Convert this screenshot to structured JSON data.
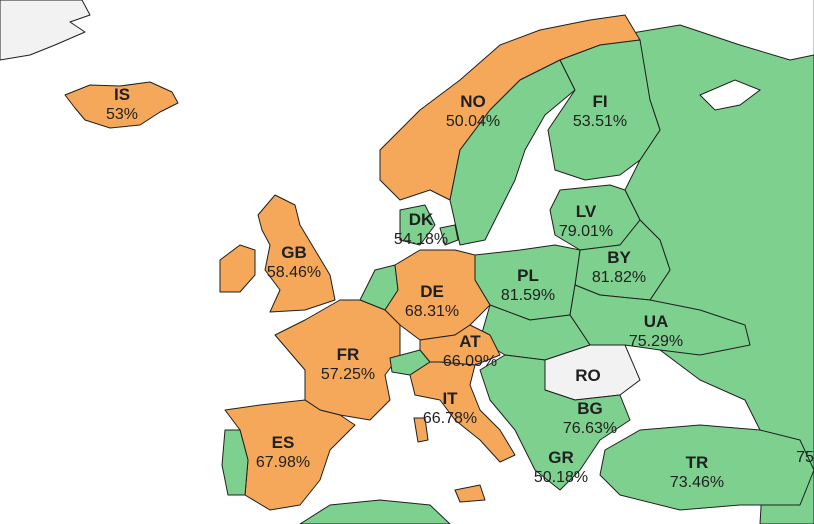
{
  "colors": {
    "above_threshold": "#7ed08f",
    "below_threshold": "#f5a85a",
    "no_data": "#f2f2f2",
    "border": "#1f1f1f",
    "sea": "#ffffff"
  },
  "countries": [
    {
      "code": "IS",
      "value": "53%"
    },
    {
      "code": "NO",
      "value": "50.04%"
    },
    {
      "code": "FI",
      "value": "53.51%"
    },
    {
      "code": "DK",
      "value": "54.18%"
    },
    {
      "code": "LV",
      "value": "79.01%"
    },
    {
      "code": "GB",
      "value": "58.46%"
    },
    {
      "code": "BY",
      "value": "81.82%"
    },
    {
      "code": "PL",
      "value": "81.59%"
    },
    {
      "code": "DE",
      "value": "68.31%"
    },
    {
      "code": "UA",
      "value": "75.29%"
    },
    {
      "code": "AT",
      "value": "66.09%"
    },
    {
      "code": "FR",
      "value": "57.25%"
    },
    {
      "code": "RO",
      "value": ""
    },
    {
      "code": "IT",
      "value": "66.78%"
    },
    {
      "code": "BG",
      "value": "76.63%"
    },
    {
      "code": "ES",
      "value": "67.98%"
    },
    {
      "code": "GR",
      "value": "50.18%"
    },
    {
      "code": "TR",
      "value": "73.46%"
    },
    {
      "code": "",
      "value": "75"
    }
  ]
}
